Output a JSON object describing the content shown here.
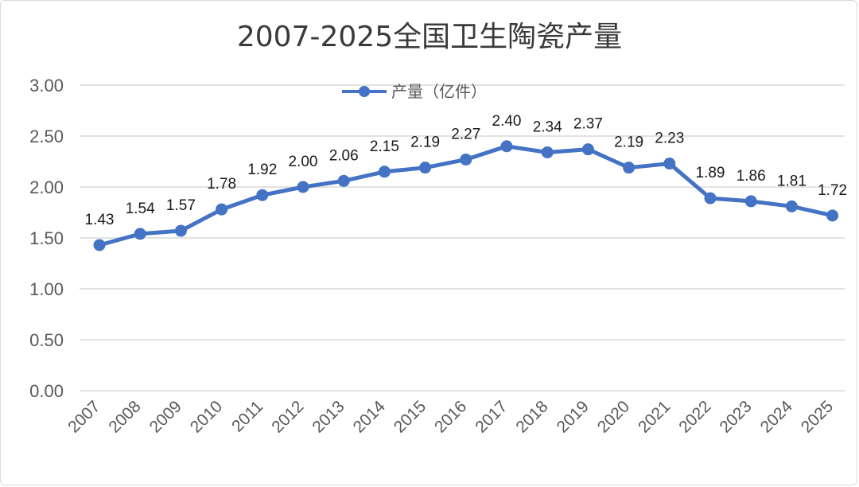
{
  "chart_data": {
    "type": "line",
    "title": "2007-2025全国卫生陶瓷产量",
    "categories": [
      "2007",
      "2008",
      "2009",
      "2010",
      "2011",
      "2012",
      "2013",
      "2014",
      "2015",
      "2016",
      "2017",
      "2018",
      "2019",
      "2020",
      "2021",
      "2022",
      "2023",
      "2024",
      "2025"
    ],
    "series": [
      {
        "name": "产量（亿件）",
        "values": [
          1.43,
          1.54,
          1.57,
          1.78,
          1.92,
          2.0,
          2.06,
          2.15,
          2.19,
          2.27,
          2.4,
          2.34,
          2.37,
          2.19,
          2.23,
          1.89,
          1.86,
          1.81,
          1.72
        ],
        "labels": [
          "1.43",
          "1.54",
          "1.57",
          "1.78",
          "1.92",
          "2.00",
          "2.06",
          "2.15",
          "2.19",
          "2.27",
          "2.40",
          "2.34",
          "2.37",
          "2.19",
          "2.23",
          "1.89",
          "1.86",
          "1.81",
          "1.72"
        ],
        "color": "#4472c4"
      }
    ],
    "yticks": [
      "0.00",
      "0.50",
      "1.00",
      "1.50",
      "2.00",
      "2.50",
      "3.00"
    ],
    "ylim": [
      0,
      3
    ],
    "grid": true,
    "legend_position": "top-center"
  }
}
